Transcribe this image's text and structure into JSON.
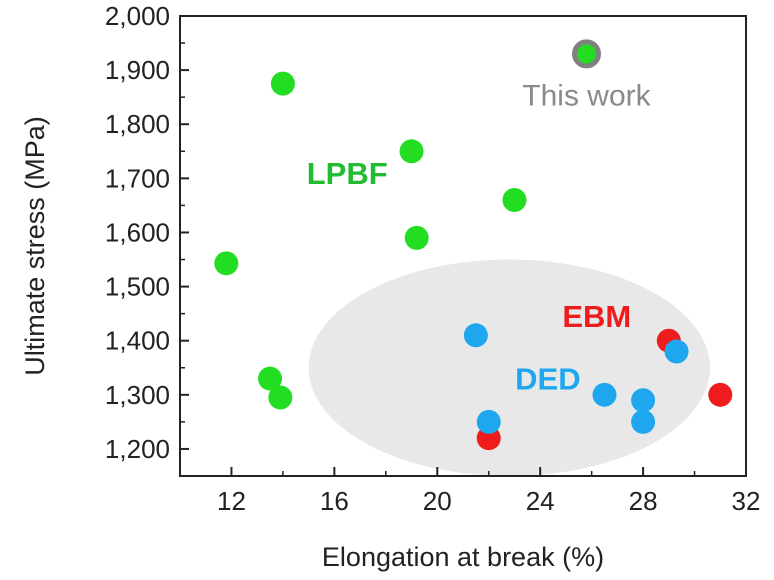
{
  "chart_data": {
    "type": "scatter",
    "title": "",
    "xlabel": "Elongation at break (%)",
    "ylabel": "Ultimate stress (MPa)",
    "xlim": [
      10,
      32
    ],
    "ylim": [
      1150,
      2000
    ],
    "xticks": [
      "12",
      "16",
      "20",
      "24",
      "28",
      "32"
    ],
    "yticks": [
      "1,200",
      "1,300",
      "1,400",
      "1,500",
      "1,600",
      "1,700",
      "1,800",
      "1,900",
      "2,000"
    ],
    "grid": false,
    "series": [
      {
        "name": "LPBF",
        "color": "#22dd22",
        "points": [
          {
            "x": 11.8,
            "y": 1543
          },
          {
            "x": 13.5,
            "y": 1330
          },
          {
            "x": 13.9,
            "y": 1295
          },
          {
            "x": 14.0,
            "y": 1875
          },
          {
            "x": 19.0,
            "y": 1750
          },
          {
            "x": 19.2,
            "y": 1590
          },
          {
            "x": 23.0,
            "y": 1660
          }
        ]
      },
      {
        "name": "EBM",
        "color": "#ee1c1c",
        "points": [
          {
            "x": 22.0,
            "y": 1220
          },
          {
            "x": 29.0,
            "y": 1400
          },
          {
            "x": 31.0,
            "y": 1300
          }
        ]
      },
      {
        "name": "DED",
        "color": "#1ea7ee",
        "points": [
          {
            "x": 21.5,
            "y": 1410
          },
          {
            "x": 22.0,
            "y": 1250
          },
          {
            "x": 26.5,
            "y": 1300
          },
          {
            "x": 28.0,
            "y": 1290
          },
          {
            "x": 28.0,
            "y": 1250
          },
          {
            "x": 29.3,
            "y": 1380
          }
        ]
      },
      {
        "name": "This work",
        "color": "#22dd22",
        "ring_color": "#808080",
        "points": [
          {
            "x": 25.8,
            "y": 1930
          }
        ]
      }
    ],
    "region": {
      "x": [
        15,
        30.6
      ],
      "y": [
        1150,
        1550
      ],
      "color": "#e8e8e8"
    },
    "labels": {
      "lpbf": "LPBF",
      "ebm": "EBM",
      "ded": "DED",
      "this_work": "This work"
    }
  }
}
